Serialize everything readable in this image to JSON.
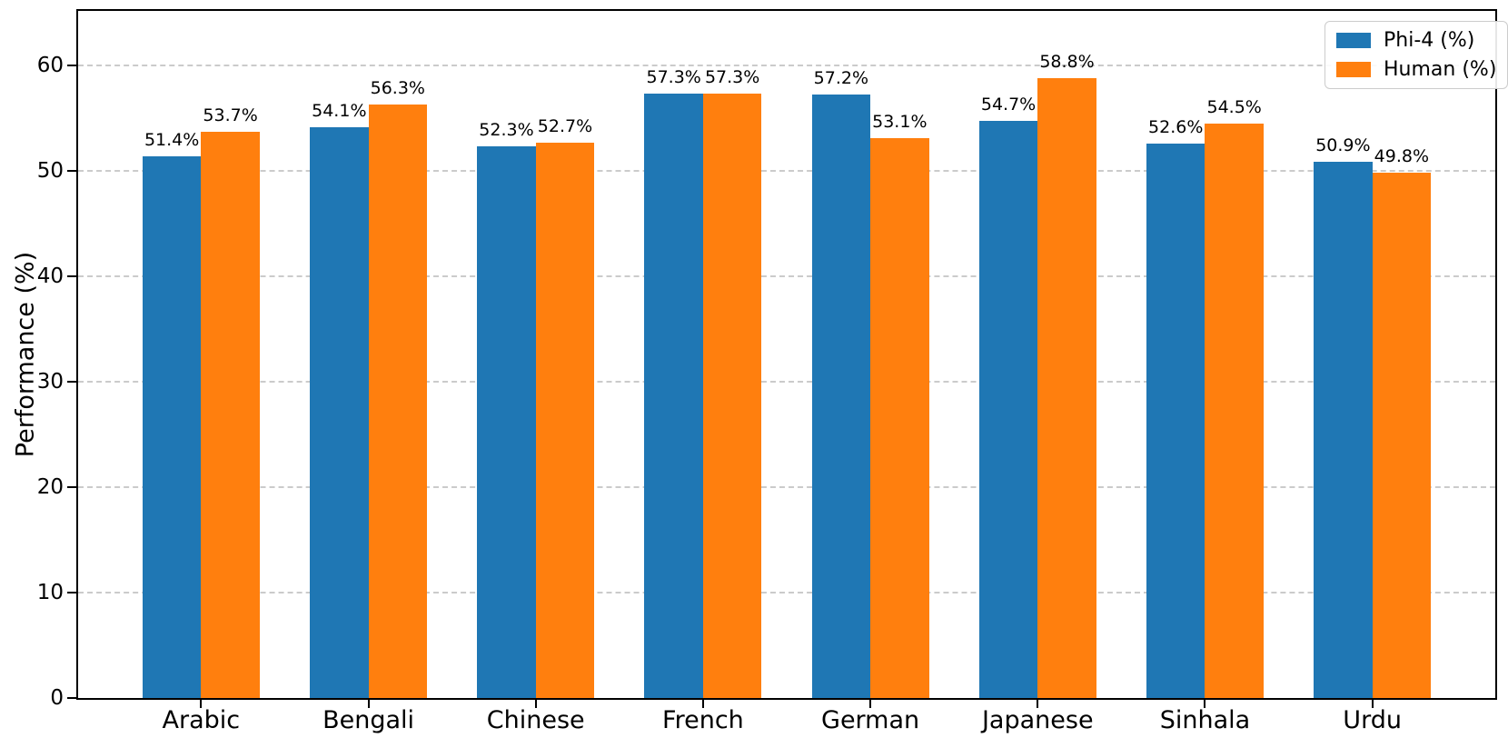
{
  "chart_data": {
    "type": "bar",
    "title": "",
    "xlabel": "",
    "ylabel": "Performance (%)",
    "categories": [
      "Arabic",
      "Bengali",
      "Chinese",
      "French",
      "German",
      "Japanese",
      "Sinhala",
      "Urdu"
    ],
    "series": [
      {
        "name": "Phi-4 (%)",
        "color": "#1f77b4",
        "values": [
          51.4,
          54.1,
          52.3,
          57.3,
          57.2,
          54.7,
          52.6,
          50.9
        ],
        "labels": [
          "51.4%",
          "54.1%",
          "52.3%",
          "57.3%",
          "57.2%",
          "54.7%",
          "52.6%",
          "50.9%"
        ]
      },
      {
        "name": "Human (%)",
        "color": "#ff7f0e",
        "values": [
          53.7,
          56.3,
          52.7,
          57.3,
          53.1,
          58.8,
          54.5,
          49.8
        ],
        "labels": [
          "53.7%",
          "56.3%",
          "52.7%",
          "57.3%",
          "53.1%",
          "58.8%",
          "54.5%",
          "49.8%"
        ]
      }
    ],
    "yticks": [
      0,
      10,
      20,
      30,
      40,
      50,
      60
    ],
    "ytick_labels": [
      "0",
      "10",
      "20",
      "30",
      "40",
      "50",
      "60"
    ],
    "ylim": [
      0,
      65.17
    ],
    "grid": "horizontal-dashed",
    "grid_color": "#cbcbcb",
    "legend_position": "top-right",
    "bar_group_offset_units": 0.735,
    "bar_width_units": 0.35,
    "x_units_total": 8.47
  }
}
